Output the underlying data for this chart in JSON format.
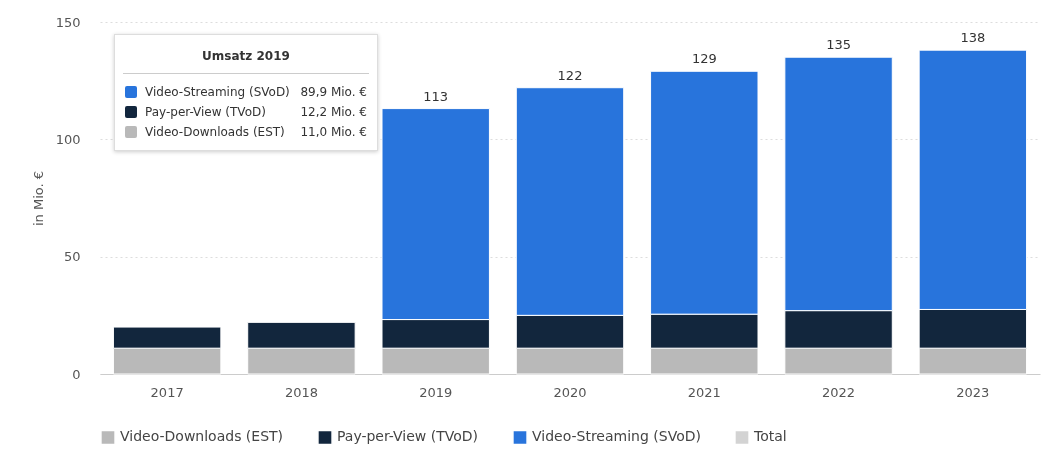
{
  "chart_data": {
    "type": "bar",
    "stacked": true,
    "ylabel": "in Mio. €",
    "categories": [
      "2017",
      "2018",
      "2019",
      "2020",
      "2021",
      "2022",
      "2023"
    ],
    "series": [
      {
        "name": "Video-Downloads (EST)",
        "color": "#b9b9b9",
        "values": [
          11,
          11,
          11.0,
          11,
          11,
          11,
          11
        ]
      },
      {
        "name": "Pay-per-View (TVoD)",
        "color": "#12263d",
        "values": [
          9,
          11,
          12.2,
          14,
          14.5,
          16,
          16.5
        ]
      },
      {
        "name": "Video-Streaming (SVoD)",
        "color": "#2874dc",
        "values": [
          null,
          null,
          89.9,
          97,
          103.5,
          108,
          110.5
        ]
      },
      {
        "name": "Total",
        "color": "#d3d3d3",
        "values": [
          null,
          null,
          null,
          null,
          null,
          null,
          null
        ]
      }
    ],
    "totals": [
      null,
      null,
      "113",
      "122",
      "129",
      "135",
      "138"
    ],
    "ylim": [
      0,
      150
    ],
    "yticks": [
      0,
      50,
      100,
      150
    ],
    "grid": "y",
    "legend": "bottom",
    "annotations": [
      "Umsatz 2019",
      "89,9 Mio. €",
      "12,2 Mio. €",
      "11,0 Mio. €"
    ]
  }
}
